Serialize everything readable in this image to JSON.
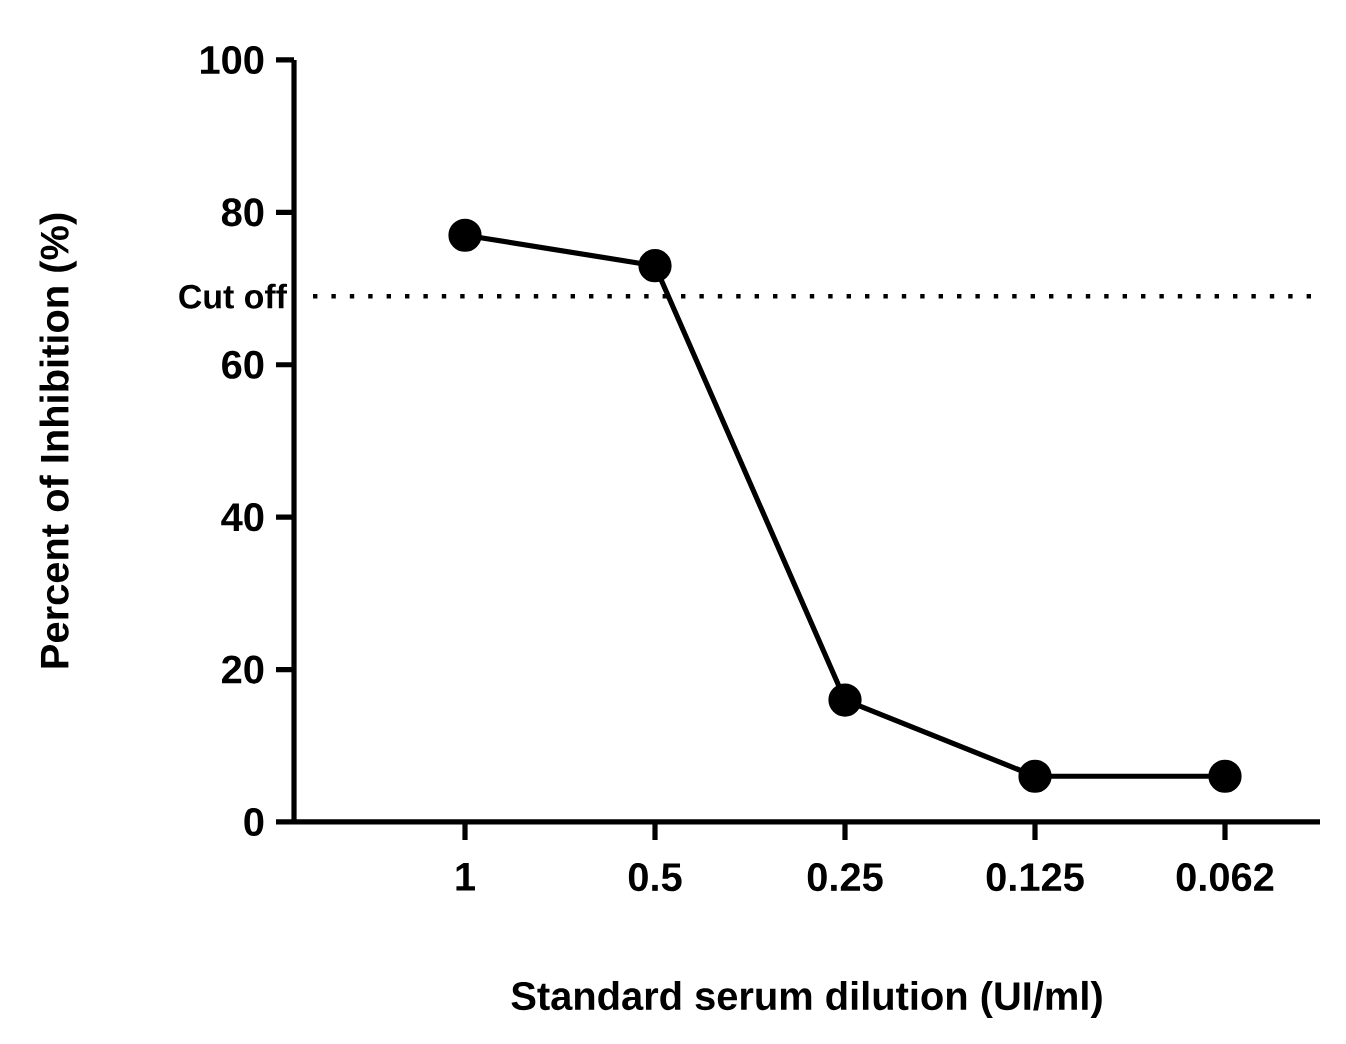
{
  "chart_data": {
    "type": "line",
    "xlabel": "Standard serum dilution (UI/ml)",
    "ylabel": "Percent of Inhibition (%)",
    "categories": [
      "1",
      "0.5",
      "0.25",
      "0.125",
      "0.062"
    ],
    "series": [
      {
        "color": "#000000",
        "values": [
          77,
          73,
          16,
          6,
          6
        ]
      }
    ],
    "ylim": [
      0,
      100
    ],
    "yticks": [
      0,
      20,
      40,
      60,
      80,
      100
    ],
    "grid": false,
    "marker": "circle",
    "line_style": "solid",
    "ref_lines": [
      {
        "axis": "y",
        "value": 69,
        "label": "Cut off",
        "color": "#000000",
        "line_style": "dotted"
      }
    ]
  }
}
